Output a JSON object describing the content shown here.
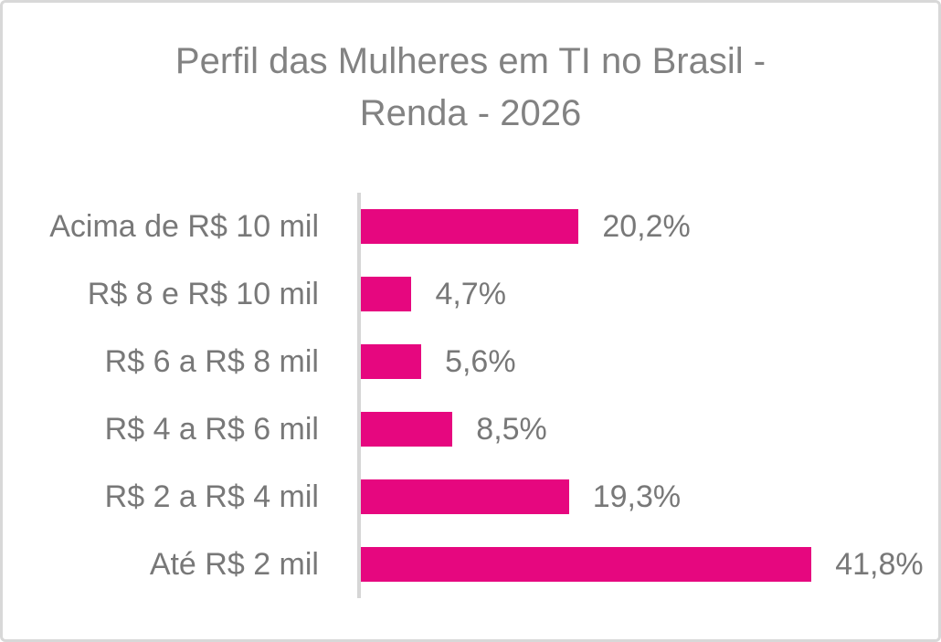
{
  "header": {
    "title_line1": "Perfil das Mulheres em TI no Brasil -",
    "title_line2": "Renda - 2026"
  },
  "chart_data": {
    "type": "bar",
    "orientation": "horizontal",
    "title": "Perfil das Mulheres em TI no Brasil - Renda - 2026",
    "categories": [
      "Acima de R$ 10 mil",
      "R$ 8 e R$ 10 mil",
      "R$ 6 a R$ 8 mil",
      "R$ 4 a R$ 6 mil",
      "R$ 2 a R$ 4 mil",
      "Até R$ 2 mil"
    ],
    "values": [
      20.2,
      4.7,
      5.6,
      8.5,
      19.3,
      41.8
    ],
    "value_labels": [
      "20,2%",
      "4,7%",
      "5,6%",
      "8,5%",
      "19,3%",
      "41,8%"
    ],
    "unit": "%",
    "xlabel": "",
    "ylabel": "",
    "xlim": [
      0,
      50
    ],
    "grid": false,
    "legend": false,
    "bar_color": "#e6077f",
    "text_color": "#787878",
    "axis_line_color": "#d6d6d6"
  }
}
